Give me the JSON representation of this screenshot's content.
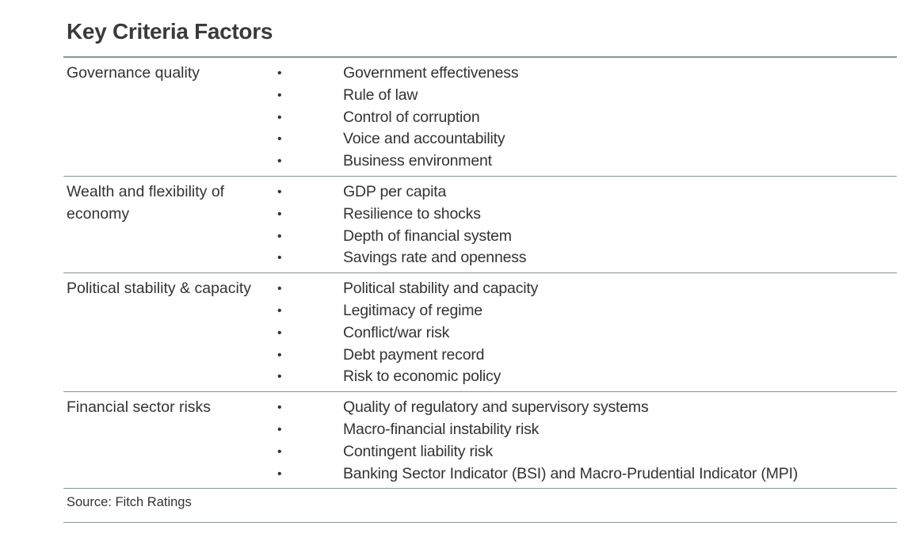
{
  "title": "Key Criteria Factors",
  "rows": [
    {
      "category": "Governance quality",
      "items": [
        "Government effectiveness",
        "Rule of law",
        "Control of corruption",
        "Voice and accountability",
        "Business environment"
      ]
    },
    {
      "category": "Wealth and flexibility of economy",
      "items": [
        "GDP per capita",
        "Resilience to shocks",
        "Depth of financial system",
        "Savings rate and openness"
      ]
    },
    {
      "category": "Political stability & capacity",
      "items": [
        "Political stability and capacity",
        "Legitimacy of regime",
        "Conflict/war risk",
        "Debt payment record",
        "Risk to economic policy"
      ]
    },
    {
      "category": "Financial sector risks",
      "items": [
        "Quality of regulatory and supervisory systems",
        "Macro-financial instability risk",
        "Contingent liability risk",
        "Banking Sector Indicator (BSI) and Macro-Prudential Indicator (MPI)"
      ]
    }
  ],
  "bullet": "•",
  "source": "Source: Fitch Ratings"
}
